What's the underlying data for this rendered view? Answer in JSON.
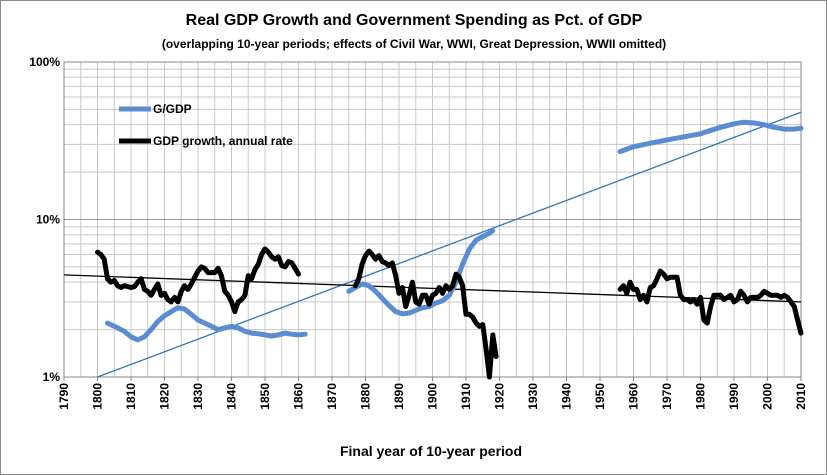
{
  "chart_data": {
    "type": "line",
    "title": "Real GDP Growth and Government Spending as Pct. of GDP",
    "subtitle": "(overlapping 10-year periods; effects of Civil War, WWI, Great Depression, WWII omitted)",
    "xlabel": "Final year of 10-year period",
    "ylabel": "",
    "y_scale": "log",
    "xlim": [
      1790,
      2010
    ],
    "ylim": [
      1,
      100
    ],
    "x_ticks": [
      "1790",
      "1800",
      "1810",
      "1820",
      "1830",
      "1840",
      "1850",
      "1860",
      "1870",
      "1880",
      "1890",
      "1900",
      "1910",
      "1920",
      "1930",
      "1940",
      "1950",
      "1960",
      "1970",
      "1980",
      "1990",
      "2000",
      "2010"
    ],
    "y_ticks": [
      "1%",
      "10%",
      "100%"
    ],
    "grid": true,
    "legend_position": "top-left",
    "series": [
      {
        "name": "G/GDP",
        "color": "#5b8bd0",
        "segments": [
          [
            [
              1803,
              2.2
            ],
            [
              1806,
              2.05
            ],
            [
              1808,
              1.95
            ],
            [
              1810,
              1.8
            ],
            [
              1812,
              1.72
            ],
            [
              1814,
              1.8
            ],
            [
              1816,
              2.0
            ],
            [
              1818,
              2.25
            ],
            [
              1820,
              2.45
            ],
            [
              1822,
              2.6
            ],
            [
              1824,
              2.75
            ],
            [
              1826,
              2.7
            ],
            [
              1828,
              2.5
            ],
            [
              1830,
              2.3
            ],
            [
              1832,
              2.2
            ],
            [
              1834,
              2.1
            ],
            [
              1836,
              2.0
            ],
            [
              1838,
              2.05
            ],
            [
              1840,
              2.1
            ],
            [
              1842,
              2.05
            ],
            [
              1844,
              1.95
            ],
            [
              1846,
              1.9
            ],
            [
              1848,
              1.88
            ],
            [
              1850,
              1.85
            ],
            [
              1852,
              1.82
            ],
            [
              1854,
              1.85
            ],
            [
              1856,
              1.9
            ],
            [
              1858,
              1.87
            ],
            [
              1860,
              1.85
            ],
            [
              1862,
              1.87
            ]
          ],
          [
            [
              1875,
              3.5
            ],
            [
              1877,
              3.7
            ],
            [
              1879,
              3.9
            ],
            [
              1881,
              3.8
            ],
            [
              1883,
              3.5
            ],
            [
              1885,
              3.15
            ],
            [
              1887,
              2.85
            ],
            [
              1889,
              2.6
            ],
            [
              1891,
              2.52
            ],
            [
              1893,
              2.55
            ],
            [
              1895,
              2.65
            ],
            [
              1897,
              2.75
            ],
            [
              1899,
              2.8
            ],
            [
              1901,
              2.95
            ],
            [
              1903,
              3.05
            ],
            [
              1905,
              3.3
            ],
            [
              1907,
              4.0
            ],
            [
              1909,
              5.2
            ],
            [
              1911,
              6.5
            ],
            [
              1913,
              7.4
            ],
            [
              1915,
              7.8
            ],
            [
              1917,
              8.2
            ],
            [
              1918,
              8.5
            ]
          ],
          [
            [
              1956,
              27
            ],
            [
              1960,
              29
            ],
            [
              1965,
              30.5
            ],
            [
              1970,
              32
            ],
            [
              1975,
              33.5
            ],
            [
              1980,
              35
            ],
            [
              1985,
              38
            ],
            [
              1990,
              40.5
            ],
            [
              1993,
              41.5
            ],
            [
              1996,
              41
            ],
            [
              1999,
              40
            ],
            [
              2002,
              38.5
            ],
            [
              2005,
              37.5
            ],
            [
              2008,
              37.5
            ],
            [
              2010,
              38
            ]
          ]
        ]
      },
      {
        "name": "GDP growth, annual rate",
        "color": "#000000",
        "segments": [
          [
            [
              1800,
              6.2
            ],
            [
              1801,
              6.0
            ],
            [
              1802,
              5.6
            ],
            [
              1803,
              4.2
            ],
            [
              1804,
              4.0
            ],
            [
              1805,
              4.1
            ],
            [
              1806,
              3.8
            ],
            [
              1807,
              3.7
            ],
            [
              1808,
              3.8
            ],
            [
              1810,
              3.7
            ],
            [
              1811,
              3.75
            ],
            [
              1812,
              4.0
            ],
            [
              1813,
              4.2
            ],
            [
              1814,
              3.6
            ],
            [
              1815,
              3.5
            ],
            [
              1816,
              3.3
            ],
            [
              1817,
              3.6
            ],
            [
              1818,
              3.9
            ],
            [
              1819,
              3.3
            ],
            [
              1820,
              3.4
            ],
            [
              1821,
              3.1
            ],
            [
              1822,
              3.0
            ],
            [
              1823,
              3.2
            ],
            [
              1824,
              3.0
            ],
            [
              1825,
              3.5
            ],
            [
              1826,
              3.8
            ],
            [
              1827,
              3.6
            ],
            [
              1828,
              3.9
            ],
            [
              1829,
              4.3
            ],
            [
              1830,
              4.7
            ],
            [
              1831,
              5.0
            ],
            [
              1832,
              4.9
            ],
            [
              1833,
              4.6
            ],
            [
              1834,
              4.6
            ],
            [
              1835,
              4.6
            ],
            [
              1836,
              4.9
            ],
            [
              1837,
              4.4
            ],
            [
              1838,
              3.5
            ],
            [
              1839,
              3.3
            ],
            [
              1840,
              3.0
            ],
            [
              1841,
              2.6
            ],
            [
              1842,
              3.0
            ],
            [
              1843,
              3.1
            ],
            [
              1844,
              3.3
            ],
            [
              1845,
              4.4
            ],
            [
              1846,
              4.2
            ],
            [
              1847,
              4.8
            ],
            [
              1848,
              5.2
            ],
            [
              1849,
              6.0
            ],
            [
              1850,
              6.5
            ],
            [
              1851,
              6.2
            ],
            [
              1852,
              5.8
            ],
            [
              1853,
              5.6
            ],
            [
              1854,
              5.8
            ],
            [
              1855,
              5.1
            ],
            [
              1856,
              5.0
            ],
            [
              1857,
              5.4
            ],
            [
              1858,
              5.3
            ],
            [
              1859,
              4.9
            ],
            [
              1860,
              4.5
            ]
          ],
          [
            [
              1877,
              3.8
            ],
            [
              1878,
              4.2
            ],
            [
              1879,
              5.2
            ],
            [
              1880,
              5.9
            ],
            [
              1881,
              6.3
            ],
            [
              1882,
              6.0
            ],
            [
              1883,
              5.6
            ],
            [
              1884,
              5.9
            ],
            [
              1885,
              5.4
            ],
            [
              1886,
              5.3
            ],
            [
              1887,
              5.1
            ],
            [
              1888,
              5.3
            ],
            [
              1889,
              4.4
            ],
            [
              1890,
              3.4
            ],
            [
              1891,
              3.7
            ],
            [
              1892,
              2.8
            ],
            [
              1893,
              3.3
            ],
            [
              1894,
              4.0
            ],
            [
              1895,
              3.0
            ],
            [
              1896,
              2.9
            ],
            [
              1897,
              3.3
            ],
            [
              1898,
              3.3
            ],
            [
              1899,
              2.9
            ],
            [
              1900,
              3.3
            ],
            [
              1901,
              3.4
            ],
            [
              1902,
              3.7
            ],
            [
              1903,
              3.4
            ],
            [
              1904,
              3.8
            ],
            [
              1905,
              3.6
            ],
            [
              1906,
              3.8
            ],
            [
              1907,
              4.5
            ],
            [
              1908,
              4.3
            ],
            [
              1909,
              3.8
            ],
            [
              1910,
              2.5
            ],
            [
              1911,
              2.5
            ],
            [
              1912,
              2.4
            ],
            [
              1913,
              2.2
            ],
            [
              1914,
              2.1
            ],
            [
              1915,
              2.15
            ],
            [
              1916,
              1.5
            ],
            [
              1917,
              1.0
            ],
            [
              1918,
              1.85
            ],
            [
              1919,
              1.35
            ]
          ],
          [
            [
              1956,
              3.6
            ],
            [
              1957,
              3.8
            ],
            [
              1958,
              3.4
            ],
            [
              1959,
              4.0
            ],
            [
              1960,
              3.6
            ],
            [
              1961,
              3.6
            ],
            [
              1962,
              3.1
            ],
            [
              1963,
              3.3
            ],
            [
              1964,
              3.0
            ],
            [
              1965,
              3.7
            ],
            [
              1966,
              3.8
            ],
            [
              1967,
              4.2
            ],
            [
              1968,
              4.7
            ],
            [
              1969,
              4.5
            ],
            [
              1970,
              4.2
            ],
            [
              1971,
              4.3
            ],
            [
              1972,
              4.3
            ],
            [
              1973,
              4.3
            ],
            [
              1974,
              3.3
            ],
            [
              1975,
              3.1
            ],
            [
              1976,
              3.1
            ],
            [
              1977,
              3.0
            ],
            [
              1978,
              3.1
            ],
            [
              1979,
              2.9
            ],
            [
              1980,
              3.2
            ],
            [
              1981,
              2.3
            ],
            [
              1982,
              2.2
            ],
            [
              1983,
              2.8
            ],
            [
              1984,
              3.3
            ],
            [
              1985,
              3.3
            ],
            [
              1986,
              3.3
            ],
            [
              1987,
              3.1
            ],
            [
              1988,
              3.2
            ],
            [
              1989,
              3.3
            ],
            [
              1990,
              3.0
            ],
            [
              1991,
              3.1
            ],
            [
              1992,
              3.5
            ],
            [
              1993,
              3.3
            ],
            [
              1994,
              3.0
            ],
            [
              1995,
              3.2
            ],
            [
              1996,
              3.2
            ],
            [
              1997,
              3.2
            ],
            [
              1998,
              3.3
            ],
            [
              1999,
              3.5
            ],
            [
              2000,
              3.4
            ],
            [
              2001,
              3.3
            ],
            [
              2002,
              3.3
            ],
            [
              2003,
              3.3
            ],
            [
              2004,
              3.2
            ],
            [
              2005,
              3.3
            ],
            [
              2006,
              3.2
            ],
            [
              2007,
              3.0
            ],
            [
              2008,
              2.8
            ],
            [
              2009,
              2.3
            ],
            [
              2010,
              1.9
            ]
          ]
        ]
      }
    ],
    "trendlines": [
      {
        "series": "G/GDP",
        "color": "#2e77b5",
        "points": [
          [
            1800,
            1.0
          ],
          [
            2010,
            48
          ]
        ]
      },
      {
        "series": "GDP growth, annual rate",
        "color": "#000000",
        "points": [
          [
            1790,
            4.45
          ],
          [
            2010,
            3.0
          ]
        ]
      }
    ]
  }
}
